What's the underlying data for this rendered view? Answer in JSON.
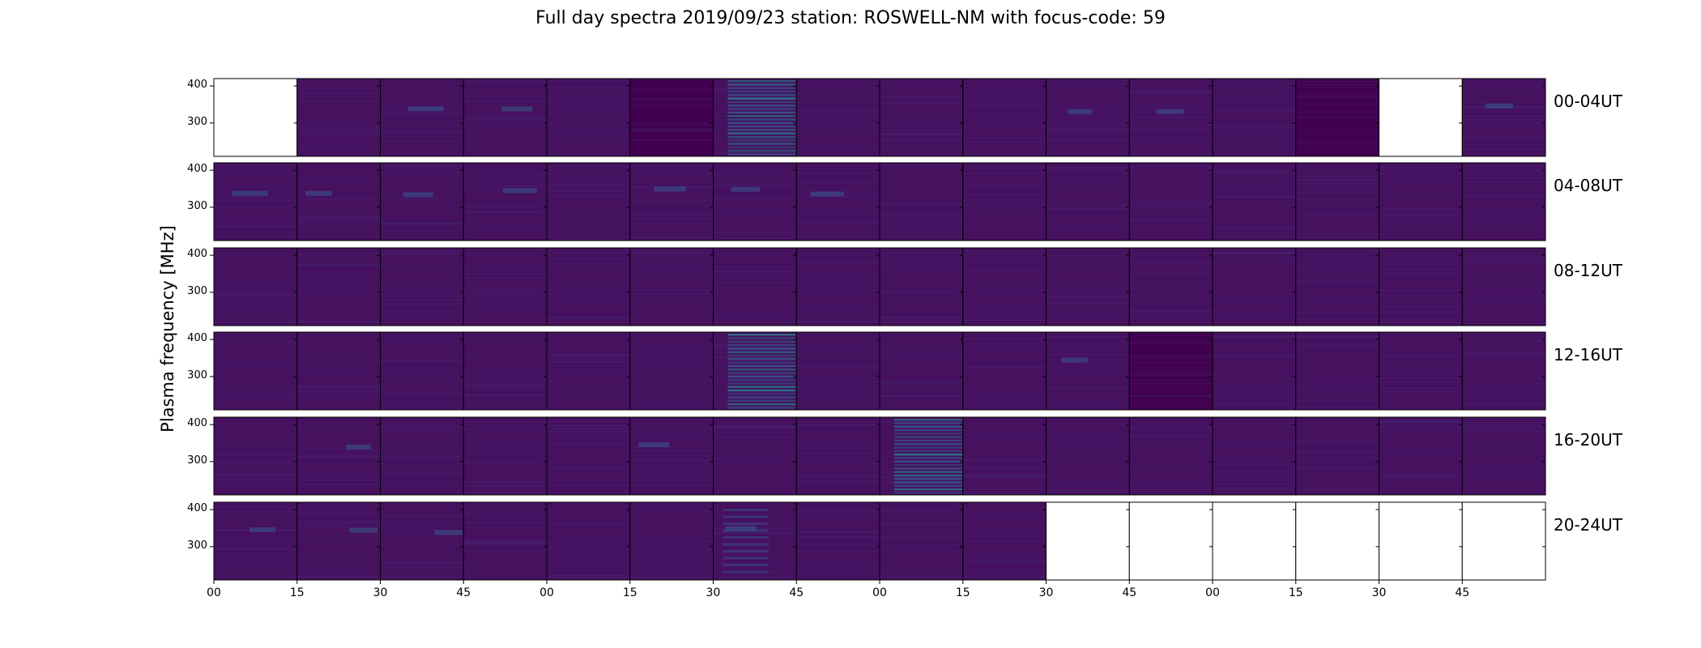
{
  "title": "Full day spectra 2019/09/23 station: ROSWELL-NM with focus-code: 59",
  "chart_data": {
    "type": "heatmap",
    "title": "Full day spectra 2019/09/23 station: ROSWELL-NM with focus-code: 59",
    "ylabel": "Plasma frequency [MHz]",
    "xlabel": "",
    "ylim": [
      210,
      420
    ],
    "yticks": [
      300,
      400
    ],
    "xticks": [
      "00",
      "15",
      "30",
      "45",
      "00",
      "15",
      "30",
      "45",
      "00",
      "15",
      "30",
      "45",
      "00",
      "15",
      "30",
      "45"
    ],
    "rows": [
      {
        "label": "00-04UT",
        "panels": [
          "empty",
          "normal",
          "active",
          "active",
          "normal",
          "dark",
          "strong",
          "normal",
          "normal",
          "normal",
          "active",
          "active",
          "normal",
          "dark",
          "empty",
          "active"
        ]
      },
      {
        "label": "04-08UT",
        "panels": [
          "active",
          "active",
          "active",
          "active",
          "normal",
          "active",
          "active",
          "active",
          "normal",
          "normal",
          "normal",
          "normal",
          "normal",
          "normal",
          "normal",
          "normal"
        ]
      },
      {
        "label": "08-12UT",
        "panels": [
          "normal",
          "normal",
          "normal",
          "normal",
          "normal",
          "normal",
          "normal",
          "normal",
          "normal",
          "normal",
          "normal",
          "normal",
          "normal",
          "normal",
          "normal",
          "normal"
        ]
      },
      {
        "label": "12-16UT",
        "panels": [
          "normal",
          "normal",
          "normal",
          "normal",
          "normal",
          "normal",
          "strong",
          "normal",
          "normal",
          "normal",
          "active",
          "dark",
          "normal",
          "normal",
          "normal",
          "normal"
        ]
      },
      {
        "label": "16-20UT",
        "panels": [
          "normal",
          "active",
          "normal",
          "normal",
          "normal",
          "active",
          "normal",
          "normal",
          "strong",
          "normal",
          "normal",
          "normal",
          "normal",
          "normal",
          "normal",
          "normal"
        ]
      },
      {
        "label": "20-24UT",
        "panels": [
          "active",
          "active",
          "active",
          "normal",
          "normal",
          "normal",
          "medium",
          "normal",
          "normal",
          "normal",
          "empty",
          "empty",
          "empty",
          "empty",
          "empty",
          "empty"
        ]
      }
    ],
    "colormap": [
      "#440154",
      "#46337f",
      "#365c8d",
      "#277f8e",
      "#1fa187"
    ]
  }
}
